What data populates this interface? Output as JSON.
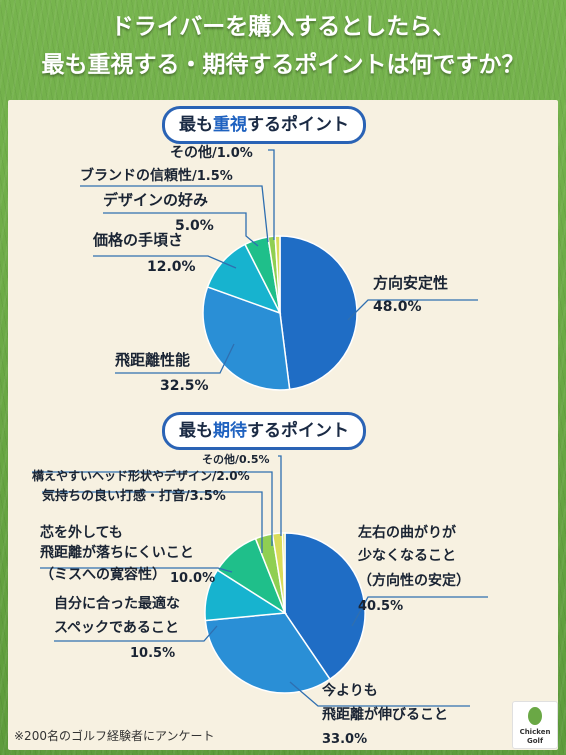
{
  "title": {
    "line1": "ドライバーを購入するとしたら、",
    "line2": "最も重視する・期待するポイントは何ですか？"
  },
  "section1": {
    "pre": "最も",
    "hl": "重視",
    "post": "するポイント"
  },
  "section2": {
    "pre": "最も",
    "hl": "期待",
    "post": "するポイント"
  },
  "note": "※200名のゴルフ経験者にアンケート",
  "logo": {
    "line1": "Chicken",
    "line2": "Golf"
  },
  "colors": {
    "blue_dark": "#1f6dc5",
    "blue_mid": "#2a8fd6",
    "teal": "#17b3cf",
    "green": "#1fbf8a",
    "green_light": "#8fcf52",
    "yellow": "#d9dc5a",
    "grass": "#6aa845",
    "panel": "#f7f1e1"
  },
  "chart_data": [
    {
      "type": "pie",
      "title": "最も重視するポイント",
      "slices": [
        {
          "label": "方向安定性",
          "value": 48.0,
          "value_text": "48.0%"
        },
        {
          "label": "飛距離性能",
          "value": 32.5,
          "value_text": "32.5%"
        },
        {
          "label": "価格の手頃さ",
          "value": 12.0,
          "value_text": "12.0%"
        },
        {
          "label": "デザインの好み",
          "value": 5.0,
          "value_text": "5.0%"
        },
        {
          "label": "ブランドの信頼性",
          "value": 1.5,
          "value_text": "/1.5%"
        },
        {
          "label": "その他",
          "value": 1.0,
          "value_text": "/1.0%"
        }
      ]
    },
    {
      "type": "pie",
      "title": "最も期待するポイント",
      "slices": [
        {
          "label": [
            "左右の曲がりが",
            "少なくなること",
            "（方向性の安定）"
          ],
          "value": 40.5,
          "value_text": "40.5%"
        },
        {
          "label": [
            "今よりも",
            "飛距離が伸びること"
          ],
          "value": 33.0,
          "value_text": "33.0%"
        },
        {
          "label": [
            "自分に合った最適な",
            "スペックであること"
          ],
          "value": 10.5,
          "value_text": "10.5%"
        },
        {
          "label": [
            "芯を外しても",
            "飛距離が落ちにくいこと",
            "（ミスへの寛容性）"
          ],
          "value": 10.0,
          "value_text": "10.0%"
        },
        {
          "label": [
            "気持ちの良い打感・打音"
          ],
          "value": 3.5,
          "value_text": "/3.5%"
        },
        {
          "label": [
            "構えやすいヘッド形状やデザイン"
          ],
          "value": 2.0,
          "value_text": "/2.0%"
        },
        {
          "label": [
            "その他"
          ],
          "value": 0.5,
          "value_text": "/0.5%"
        }
      ]
    }
  ]
}
